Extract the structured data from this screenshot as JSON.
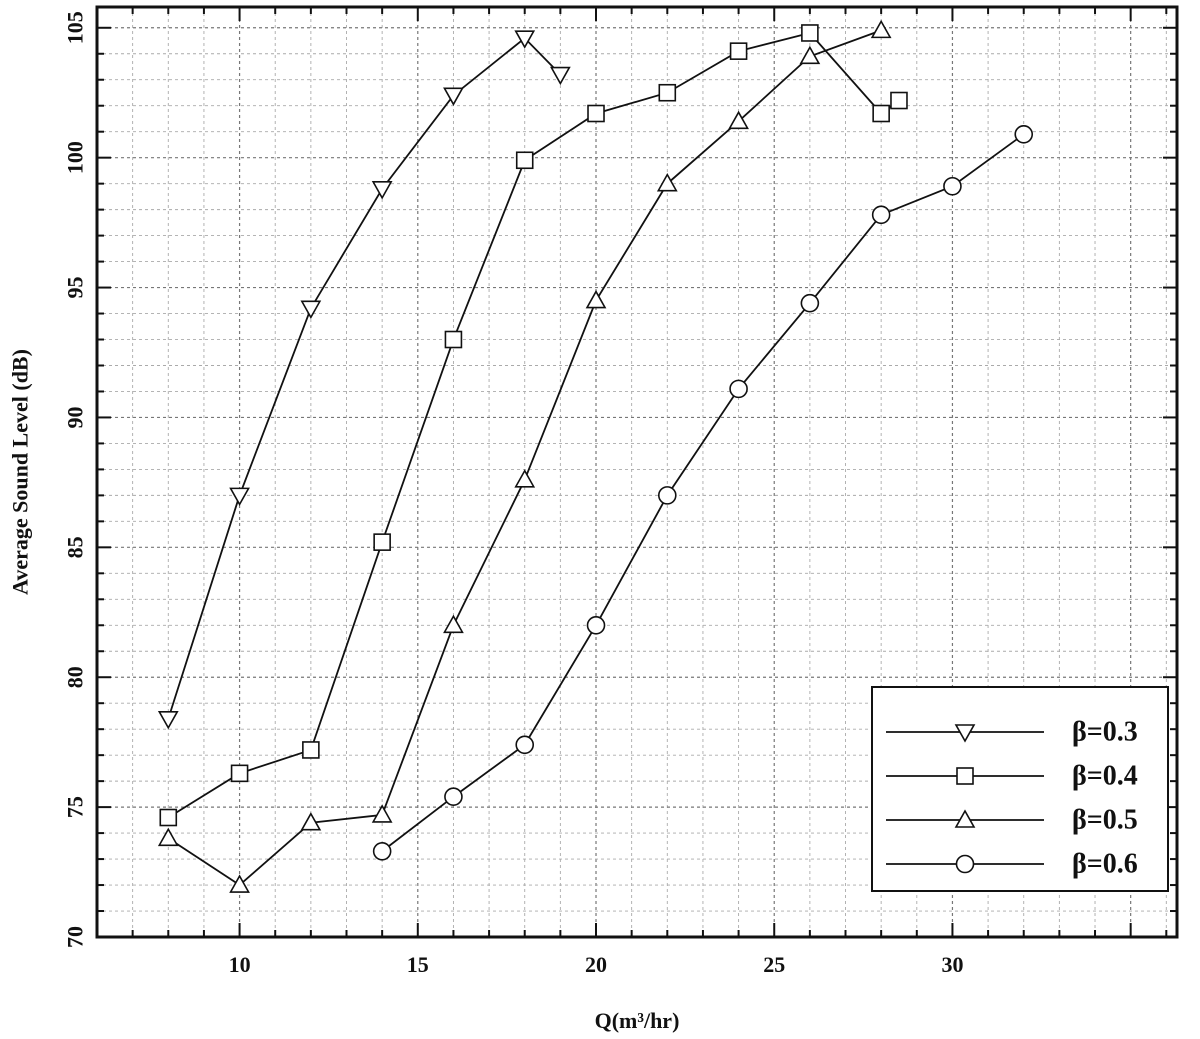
{
  "chart_data": {
    "type": "line",
    "xlabel": "Q(m³/hr)",
    "ylabel": "Average Sound Level (dB)",
    "xlim": [
      6,
      36.3
    ],
    "ylim": [
      70,
      105.8
    ],
    "xticks": [
      "10",
      "15",
      "20",
      "25",
      "30"
    ],
    "xtick_values": [
      10,
      15,
      20,
      25,
      30
    ],
    "yticks": [
      "70",
      "75",
      "80",
      "85",
      "90",
      "95",
      "100",
      "105"
    ],
    "ytick_values": [
      70,
      75,
      80,
      85,
      90,
      95,
      100,
      105
    ],
    "x_minor_step": 1,
    "y_minor_step": 1,
    "grid": true,
    "legend_position": "bottom-right",
    "series": [
      {
        "name": "β=0.3",
        "marker": "triangle-down",
        "x": [
          8,
          10,
          12,
          14,
          16,
          18,
          19
        ],
        "y": [
          78.4,
          87.0,
          94.2,
          98.8,
          102.4,
          104.6,
          103.2
        ]
      },
      {
        "name": "β=0.4",
        "marker": "square",
        "x": [
          8,
          10,
          12,
          14,
          16,
          18,
          20,
          22,
          24,
          26,
          28,
          28.5
        ],
        "y": [
          74.6,
          76.3,
          77.2,
          85.2,
          93.0,
          99.9,
          101.7,
          102.5,
          104.1,
          104.8,
          101.7,
          102.2
        ]
      },
      {
        "name": "β=0.5",
        "marker": "triangle-up",
        "x": [
          8,
          10,
          12,
          14,
          16,
          18,
          20,
          22,
          24,
          26,
          28
        ],
        "y": [
          73.8,
          72.0,
          74.4,
          74.7,
          82.0,
          87.6,
          94.5,
          99.0,
          101.4,
          103.9,
          104.9
        ]
      },
      {
        "name": "β=0.6",
        "marker": "circle",
        "x": [
          14,
          16,
          18,
          20,
          22,
          24,
          26,
          28,
          30,
          32
        ],
        "y": [
          73.3,
          75.4,
          77.4,
          82.0,
          87.0,
          91.1,
          94.4,
          97.8,
          98.9,
          100.9
        ]
      }
    ]
  }
}
